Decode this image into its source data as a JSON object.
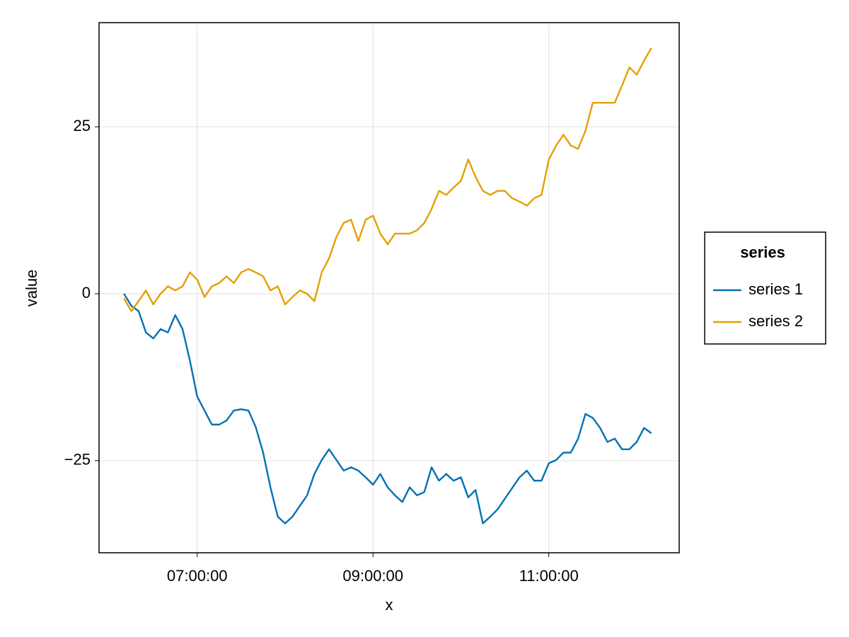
{
  "chart_data": {
    "type": "line",
    "x_label": "x",
    "y_label": "value",
    "legend_title": "series",
    "x": [
      "06:10:00",
      "06:15:00",
      "06:20:00",
      "06:25:00",
      "06:30:00",
      "06:35:00",
      "06:40:00",
      "06:45:00",
      "06:50:00",
      "06:55:00",
      "07:00:00",
      "07:05:00",
      "07:10:00",
      "07:15:00",
      "07:20:00",
      "07:25:00",
      "07:30:00",
      "07:35:00",
      "07:40:00",
      "07:45:00",
      "07:50:00",
      "07:55:00",
      "08:00:00",
      "08:05:00",
      "08:10:00",
      "08:15:00",
      "08:20:00",
      "08:25:00",
      "08:30:00",
      "08:35:00",
      "08:40:00",
      "08:45:00",
      "08:50:00",
      "08:55:00",
      "09:00:00",
      "09:05:00",
      "09:10:00",
      "09:15:00",
      "09:20:00",
      "09:25:00",
      "09:30:00",
      "09:35:00",
      "09:40:00",
      "09:45:00",
      "09:50:00",
      "09:55:00",
      "10:00:00",
      "10:05:00",
      "10:10:00",
      "10:15:00",
      "10:20:00",
      "10:25:00",
      "10:30:00",
      "10:35:00",
      "10:40:00",
      "10:45:00",
      "10:50:00",
      "10:55:00",
      "11:00:00",
      "11:05:00",
      "11:10:00",
      "11:15:00",
      "11:20:00",
      "11:25:00",
      "11:30:00",
      "11:35:00",
      "11:40:00",
      "11:45:00",
      "11:50:00",
      "11:55:00",
      "12:00:00",
      "12:05:00",
      "12:10:00"
    ],
    "series": [
      {
        "name": "series 1",
        "color": "#0072b2",
        "values": [
          0,
          -1.8,
          -2.6,
          -5.8,
          -6.7,
          -5.3,
          -5.8,
          -3.2,
          -5.3,
          -10,
          -15.4,
          -17.5,
          -19.6,
          -19.6,
          -19,
          -17.5,
          -17.3,
          -17.5,
          -20,
          -23.8,
          -29,
          -33.4,
          -34.4,
          -33.4,
          -31.8,
          -30.2,
          -27,
          -24.9,
          -23.3,
          -24.9,
          -26.5,
          -26,
          -26.5,
          -27.5,
          -28.6,
          -27,
          -29,
          -30.2,
          -31.2,
          -29,
          -30.2,
          -29.7,
          -26,
          -28,
          -27,
          -28,
          -27.5,
          -30.5,
          -29.4,
          -34.4,
          -33.4,
          -32.3,
          -30.7,
          -29.1,
          -27.5,
          -26.5,
          -28,
          -28,
          -25.4,
          -24.9,
          -23.8,
          -23.8,
          -21.7,
          -18,
          -18.6,
          -20.1,
          -22.2,
          -21.7,
          -23.3,
          -23.3,
          -22.2,
          -20.1,
          -20.9
        ]
      },
      {
        "name": "series 2",
        "color": "#e69f00",
        "values": [
          -0.7,
          -2.6,
          -1.1,
          0.5,
          -1.6,
          0,
          1.1,
          0.5,
          1.1,
          3.2,
          2.1,
          -0.5,
          1.1,
          1.6,
          2.6,
          1.6,
          3.2,
          3.7,
          3.2,
          2.6,
          0.5,
          1.1,
          -1.6,
          -0.5,
          0.5,
          0,
          -1.1,
          3.2,
          5.3,
          8.5,
          10.6,
          11.1,
          7.9,
          11.1,
          11.7,
          9,
          7.4,
          9,
          9,
          9,
          9.5,
          10.6,
          12.7,
          15.4,
          14.8,
          15.9,
          16.9,
          20.1,
          17.5,
          15.4,
          14.8,
          15.4,
          15.4,
          14.3,
          13.8,
          13.2,
          14.3,
          14.8,
          20.1,
          22.2,
          23.8,
          22.2,
          21.7,
          24.4,
          28.6,
          28.6,
          28.6,
          28.6,
          31.2,
          33.9,
          32.8,
          34.9,
          36.8
        ]
      }
    ],
    "xlim": [
      "05:53:00",
      "12:29:00"
    ],
    "xticks": [
      "07:00:00",
      "09:00:00",
      "11:00:00"
    ],
    "ylim": [
      -38.8,
      40.6
    ],
    "yticks": [
      {
        "value": -25,
        "label": "−25"
      },
      0,
      25
    ],
    "grid": true,
    "legend_position": "right"
  }
}
